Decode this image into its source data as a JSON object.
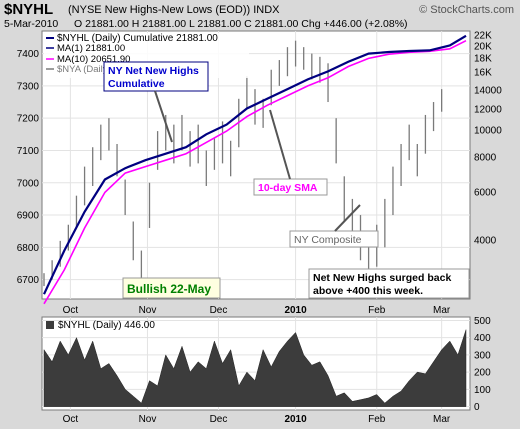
{
  "header": {
    "symbol": "$NYHL",
    "name": "(NYSE New Highs-New Lows (EOD)) INDX",
    "watermark": "© StockCharts.com",
    "date": "5-Mar-2010",
    "quote": "O 21881.00  H 21881.00  L 21881.00  C 21881.00  Chg +446.00 (+2.08%)"
  },
  "legend": {
    "line1": "$NYHL (Daily) Cumulative 21881.00",
    "line2": "MA(1) 21881.00",
    "line3": "MA(10) 20651.90",
    "line4": "$NYA (Daily)"
  },
  "annotations": {
    "cumulative": "NY Net New Highs Cumulative",
    "cumulative_line1": "NY Net New Highs",
    "cumulative_line2": "Cumulative",
    "sma": "10-day SMA",
    "composite": "NY Composite",
    "bullish": "Bullish 22-May",
    "surge_line1": "Net New Highs surged back",
    "surge_line2": "above +400 this week."
  },
  "lower_panel": {
    "label": "$NYHL (Daily) 446.00"
  },
  "colors": {
    "cumulative": "#000080",
    "ma10": "#ff00ff",
    "composite_bars": "#7a7a7a",
    "area_fill": "#3c3c3c",
    "bullish_text": "#008000",
    "bullish_bg": "#ffffe0"
  },
  "chart_data": [
    {
      "type": "line",
      "panel": "upper",
      "xticks": [
        "Oct",
        "Nov",
        "Dec",
        "2010",
        "Feb",
        "Mar"
      ],
      "yaxis_left": {
        "ticks": [
          6700,
          6800,
          6900,
          7000,
          7100,
          7200,
          7300,
          7400
        ],
        "ylim": [
          6640,
          7470
        ]
      },
      "yaxis_right": {
        "ticks": [
          "4000",
          "6000",
          "8000",
          "10000",
          "12000",
          "14000",
          "16K",
          "18K",
          "20K",
          "22K"
        ]
      },
      "series": [
        {
          "name": "$NYHL (Daily) Cumulative",
          "x": [
            0,
            5,
            10,
            15,
            20,
            25,
            30,
            35,
            40,
            45,
            50,
            55,
            60,
            65,
            70,
            75,
            80,
            85,
            90,
            95,
            100,
            104
          ],
          "values": [
            6655,
            6790,
            6910,
            7010,
            7045,
            7070,
            7090,
            7110,
            7150,
            7180,
            7230,
            7260,
            7290,
            7320,
            7345,
            7375,
            7400,
            7405,
            7408,
            7410,
            7425,
            7455
          ]
        },
        {
          "name": "MA(10)",
          "x": [
            0,
            5,
            10,
            15,
            20,
            25,
            30,
            35,
            40,
            45,
            50,
            55,
            60,
            65,
            70,
            75,
            80,
            85,
            90,
            95,
            100,
            104
          ],
          "values": [
            6625,
            6730,
            6860,
            6970,
            7030,
            7050,
            7070,
            7090,
            7125,
            7160,
            7205,
            7240,
            7270,
            7300,
            7325,
            7360,
            7385,
            7398,
            7404,
            7407,
            7415,
            7440
          ]
        }
      ],
      "composite_bars": [
        [
          0,
          6680,
          6720
        ],
        [
          2,
          6700,
          6760
        ],
        [
          4,
          6740,
          6820
        ],
        [
          6,
          6790,
          6870
        ],
        [
          8,
          6860,
          6960
        ],
        [
          10,
          6930,
          7050
        ],
        [
          12,
          6990,
          7110
        ],
        [
          14,
          7070,
          7180
        ],
        [
          16,
          7100,
          7200
        ],
        [
          18,
          7020,
          7120
        ],
        [
          20,
          6900,
          7010
        ],
        [
          22,
          6760,
          6880
        ],
        [
          24,
          6690,
          6790
        ],
        [
          26,
          6860,
          7000
        ],
        [
          28,
          7040,
          7160
        ],
        [
          30,
          7100,
          7210
        ],
        [
          32,
          7060,
          7180
        ],
        [
          34,
          7100,
          7210
        ],
        [
          36,
          7050,
          7160
        ],
        [
          38,
          7060,
          7180
        ],
        [
          40,
          6990,
          7100
        ],
        [
          42,
          7040,
          7140
        ],
        [
          44,
          7060,
          7190
        ],
        [
          46,
          7020,
          7130
        ],
        [
          48,
          7110,
          7260
        ],
        [
          50,
          7230,
          7330
        ],
        [
          52,
          7180,
          7290
        ],
        [
          54,
          7170,
          7260
        ],
        [
          56,
          7240,
          7350
        ],
        [
          58,
          7300,
          7380
        ],
        [
          60,
          7330,
          7420
        ],
        [
          62,
          7360,
          7440
        ],
        [
          64,
          7350,
          7420
        ],
        [
          66,
          7320,
          7400
        ],
        [
          68,
          7310,
          7390
        ],
        [
          70,
          7250,
          7370
        ],
        [
          72,
          7060,
          7200
        ],
        [
          74,
          6880,
          7020
        ],
        [
          76,
          6800,
          6950
        ],
        [
          78,
          6760,
          6900
        ],
        [
          80,
          6720,
          6820
        ],
        [
          82,
          6740,
          6870
        ],
        [
          84,
          6800,
          6950
        ],
        [
          86,
          6900,
          7050
        ],
        [
          88,
          6990,
          7120
        ],
        [
          90,
          7070,
          7180
        ],
        [
          92,
          7020,
          7120
        ],
        [
          94,
          7090,
          7210
        ],
        [
          96,
          7160,
          7250
        ],
        [
          98,
          7220,
          7290
        ]
      ]
    },
    {
      "type": "area",
      "panel": "lower",
      "title": "$NYHL (Daily) 446.00",
      "xticks": [
        "Oct",
        "Nov",
        "Dec",
        "2010",
        "Feb",
        "Mar"
      ],
      "yticks": [
        0,
        100,
        200,
        300,
        400,
        500
      ],
      "ylim": [
        -20,
        520
      ],
      "x": [
        0,
        2,
        4,
        6,
        8,
        10,
        12,
        14,
        16,
        18,
        20,
        22,
        24,
        26,
        28,
        30,
        32,
        34,
        36,
        38,
        40,
        42,
        44,
        46,
        48,
        50,
        52,
        54,
        56,
        58,
        60,
        62,
        64,
        66,
        68,
        70,
        72,
        74,
        76,
        78,
        80,
        82,
        84,
        86,
        88,
        90,
        92,
        94,
        96,
        98,
        100,
        102,
        104
      ],
      "values": [
        330,
        260,
        380,
        300,
        400,
        270,
        380,
        220,
        250,
        180,
        100,
        60,
        20,
        150,
        120,
        300,
        220,
        350,
        200,
        260,
        220,
        380,
        250,
        330,
        120,
        200,
        150,
        330,
        230,
        320,
        380,
        430,
        300,
        240,
        260,
        180,
        60,
        80,
        30,
        40,
        50,
        70,
        20,
        60,
        90,
        150,
        200,
        190,
        260,
        330,
        380,
        300,
        446
      ]
    }
  ]
}
